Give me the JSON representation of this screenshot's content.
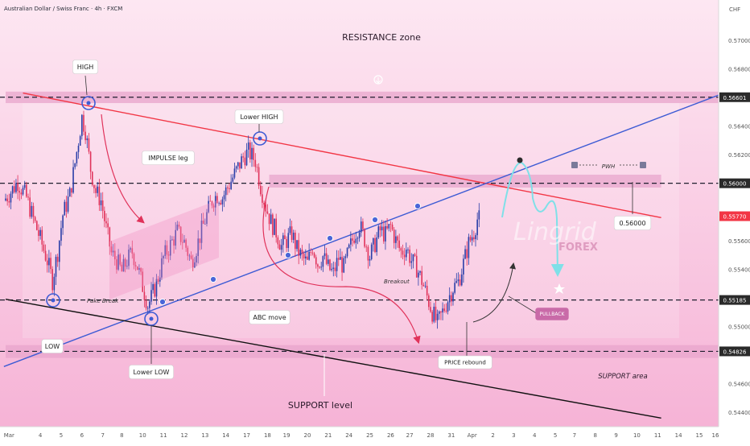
{
  "header": {
    "symbol_title": "Australian Dollar / Swiss Franc · 4h · FXCM",
    "currency": "CHF"
  },
  "watermark": {
    "brand": "Lingrid",
    "sub": "FOREX"
  },
  "chart_data": {
    "type": "candlestick",
    "title": "Australian Dollar / Swiss Franc · 4h · FXCM",
    "y_axis": {
      "unit": "CHF",
      "range": [
        0.543,
        0.5728
      ],
      "ticks": [
        0.57,
        0.568,
        0.564,
        0.562,
        0.556,
        0.554,
        0.552,
        0.55,
        0.546,
        0.544
      ]
    },
    "x_axis": {
      "labels": [
        {
          "text": "Mar",
          "bar": 2
        },
        {
          "text": "4",
          "bar": 20
        },
        {
          "text": "5",
          "bar": 32
        },
        {
          "text": "6",
          "bar": 44
        },
        {
          "text": "7",
          "bar": 56
        },
        {
          "text": "8",
          "bar": 67
        },
        {
          "text": "10",
          "bar": 79
        },
        {
          "text": "11",
          "bar": 91
        },
        {
          "text": "12",
          "bar": 103
        },
        {
          "text": "13",
          "bar": 115
        },
        {
          "text": "14",
          "bar": 127
        },
        {
          "text": "17",
          "bar": 139
        },
        {
          "text": "18",
          "bar": 151
        },
        {
          "text": "19",
          "bar": 162
        },
        {
          "text": "20",
          "bar": 174
        },
        {
          "text": "21",
          "bar": 186
        },
        {
          "text": "24",
          "bar": 198
        },
        {
          "text": "25",
          "bar": 210
        },
        {
          "text": "26",
          "bar": 222
        },
        {
          "text": "27",
          "bar": 233
        },
        {
          "text": "28",
          "bar": 245
        },
        {
          "text": "31",
          "bar": 257
        },
        {
          "text": "Apr",
          "bar": 269
        },
        {
          "text": "2",
          "bar": 281
        },
        {
          "text": "3",
          "bar": 293
        },
        {
          "text": "4",
          "bar": 305
        },
        {
          "text": "5",
          "bar": 317
        },
        {
          "text": "7",
          "bar": 328
        },
        {
          "text": "8",
          "bar": 340
        },
        {
          "text": "9",
          "bar": 352
        },
        {
          "text": "10",
          "bar": 364
        },
        {
          "text": "11",
          "bar": 376
        },
        {
          "text": "14",
          "bar": 388
        },
        {
          "text": "15",
          "bar": 400
        },
        {
          "text": "16",
          "bar": 412
        }
      ]
    },
    "price_tags": [
      {
        "text": "0.56601",
        "value": 0.56601,
        "color": "#2a2a2a"
      },
      {
        "text": "0.56000",
        "value": 0.56,
        "color": "#2a2a2a"
      },
      {
        "text": "0.55770",
        "value": 0.5577,
        "color": "#f23645"
      },
      {
        "text": "0.55185",
        "value": 0.55185,
        "color": "#2a2a2a"
      },
      {
        "text": "0.54826",
        "value": 0.54826,
        "color": "#2a2a2a"
      }
    ],
    "candle_anchors": [
      [
        0,
        0.5588
      ],
      [
        4,
        0.5594
      ],
      [
        8,
        0.5601
      ],
      [
        13,
        0.559
      ],
      [
        17,
        0.5575
      ],
      [
        21,
        0.5561
      ],
      [
        25,
        0.5546
      ],
      [
        28,
        0.5532
      ],
      [
        31,
        0.5552
      ],
      [
        34,
        0.5578
      ],
      [
        38,
        0.5592
      ],
      [
        41,
        0.5614
      ],
      [
        43,
        0.563
      ],
      [
        45,
        0.5646
      ],
      [
        47,
        0.5637
      ],
      [
        50,
        0.561
      ],
      [
        53,
        0.5594
      ],
      [
        56,
        0.5588
      ],
      [
        59,
        0.5568
      ],
      [
        62,
        0.5551
      ],
      [
        65,
        0.5546
      ],
      [
        68,
        0.5538
      ],
      [
        71,
        0.5546
      ],
      [
        74,
        0.5552
      ],
      [
        77,
        0.5542
      ],
      [
        80,
        0.5528
      ],
      [
        83,
        0.5515
      ],
      [
        85,
        0.552
      ],
      [
        88,
        0.553
      ],
      [
        92,
        0.5548
      ],
      [
        96,
        0.5557
      ],
      [
        100,
        0.5566
      ],
      [
        104,
        0.5559
      ],
      [
        108,
        0.5545
      ],
      [
        111,
        0.5555
      ],
      [
        114,
        0.5567
      ],
      [
        117,
        0.5578
      ],
      [
        120,
        0.5588
      ],
      [
        123,
        0.5592
      ],
      [
        126,
        0.559
      ],
      [
        129,
        0.5597
      ],
      [
        132,
        0.5604
      ],
      [
        135,
        0.5611
      ],
      [
        138,
        0.5618
      ],
      [
        141,
        0.5622
      ],
      [
        145,
        0.5616
      ],
      [
        148,
        0.5598
      ],
      [
        151,
        0.5584
      ],
      [
        154,
        0.5573
      ],
      [
        157,
        0.5566
      ],
      [
        160,
        0.5556
      ],
      [
        163,
        0.556
      ],
      [
        166,
        0.5565
      ],
      [
        169,
        0.5554
      ],
      [
        172,
        0.5548
      ],
      [
        175,
        0.5544
      ],
      [
        178,
        0.5556
      ],
      [
        181,
        0.5544
      ],
      [
        184,
        0.5549
      ],
      [
        187,
        0.5541
      ],
      [
        190,
        0.5537
      ],
      [
        193,
        0.5548
      ],
      [
        196,
        0.5541
      ],
      [
        199,
        0.5553
      ],
      [
        202,
        0.5564
      ],
      [
        205,
        0.5571
      ],
      [
        208,
        0.5561
      ],
      [
        211,
        0.5549
      ],
      [
        214,
        0.5558
      ],
      [
        217,
        0.5567
      ],
      [
        220,
        0.5564
      ],
      [
        223,
        0.557
      ],
      [
        226,
        0.556
      ],
      [
        229,
        0.5552
      ],
      [
        232,
        0.5555
      ],
      [
        235,
        0.5546
      ],
      [
        238,
        0.5541
      ],
      [
        241,
        0.5532
      ],
      [
        244,
        0.5521
      ],
      [
        247,
        0.551
      ],
      [
        250,
        0.5502
      ],
      [
        253,
        0.551
      ],
      [
        256,
        0.5519
      ],
      [
        259,
        0.5527
      ],
      [
        262,
        0.5531
      ],
      [
        265,
        0.5544
      ],
      [
        268,
        0.5558
      ],
      [
        271,
        0.5566
      ],
      [
        273,
        0.5575
      ]
    ],
    "zones": [
      {
        "name": "resistance-zone",
        "from": 0.5656,
        "to": 0.5664,
        "bar_from": 0,
        "bar_to": 412
      },
      {
        "name": "pwh-zone",
        "from": 0.5597,
        "to": 0.5606,
        "bar_from": 152,
        "bar_to": 378
      },
      {
        "name": "support-zone",
        "from": 0.5478,
        "to": 0.5487,
        "bar_from": 0,
        "bar_to": 412
      }
    ],
    "lines": [
      {
        "name": "red-descending-trendline",
        "color": "#f23645",
        "points": [
          [
            10,
            0.5663
          ],
          [
            378,
            0.5576
          ]
        ]
      },
      {
        "name": "blue-ascending-trendline",
        "color": "#3d5bd4",
        "points": [
          [
            -1,
            0.5472
          ],
          [
            412,
            0.5662
          ]
        ]
      },
      {
        "name": "support-trendline",
        "color": "#111111",
        "points": [
          [
            0,
            0.5519
          ],
          [
            378,
            0.5436
          ]
        ]
      }
    ]
  },
  "annotations": {
    "resistance_zone": "RESISTANCE zone",
    "high": "HIGH",
    "lower_high": "Lower HIGH",
    "impulse_leg": "IMPULSE leg",
    "fake_break": "Fake Break",
    "abc_move": "ABC move",
    "low": "LOW",
    "lower_low": "Lower LOW",
    "support_level": "SUPPORT level",
    "support_area": "SUPPORT area",
    "breakout": "Breakout",
    "price_rebound": "PRICE rebound",
    "pullback": "PULLBACK",
    "pwh": "PWH",
    "level_callout": "0.56000"
  },
  "colors": {
    "background": "#ffffff",
    "pink_fill": "#f9c3df",
    "zone": "#e8a6cc",
    "bull": "#2a3ea8",
    "bear": "#e0325a",
    "red_line": "#f23645",
    "blue_line": "#3d5bd4",
    "forecast": "#7fe0e8"
  }
}
